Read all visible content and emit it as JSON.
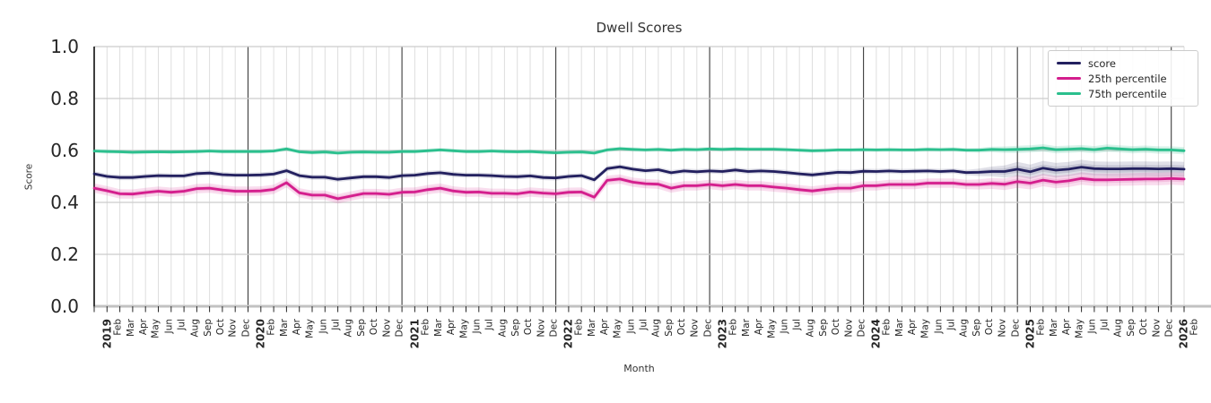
{
  "chart_data": {
    "type": "line",
    "title": "Dwell Scores",
    "xlabel": "Month",
    "ylabel": "Score",
    "ylim": [
      0.0,
      1.0
    ],
    "ytick_labels": [
      "0.0",
      "0.2",
      "0.4",
      "0.6",
      "0.8",
      "1.0"
    ],
    "grid": true,
    "legend_position": "upper right",
    "x_tick_labels": [
      "2019",
      "Feb",
      "Mar",
      "Apr",
      "May",
      "Jun",
      "Jul",
      "Aug",
      "Sep",
      "Oct",
      "Nov",
      "Dec",
      "2020",
      "Feb",
      "Mar",
      "Apr",
      "May",
      "Jun",
      "Jul",
      "Aug",
      "Sep",
      "Oct",
      "Nov",
      "Dec",
      "2021",
      "Feb",
      "Mar",
      "Apr",
      "May",
      "Jun",
      "Jul",
      "Aug",
      "Sep",
      "Oct",
      "Nov",
      "Dec",
      "2022",
      "Feb",
      "Mar",
      "Apr",
      "May",
      "Jun",
      "Jul",
      "Aug",
      "Sep",
      "Oct",
      "Nov",
      "Dec",
      "2023",
      "Feb",
      "Mar",
      "Apr",
      "May",
      "Jun",
      "Jul",
      "Aug",
      "Sep",
      "Oct",
      "Nov",
      "Dec",
      "2024",
      "Feb",
      "Mar",
      "Apr",
      "May",
      "Jun",
      "Jul",
      "Aug",
      "Sep",
      "Oct",
      "Nov",
      "Dec",
      "2025",
      "Feb",
      "Mar",
      "Apr",
      "May",
      "Jun",
      "Jul",
      "Aug",
      "Sep",
      "Oct",
      "Nov",
      "Dec",
      "2026",
      "Feb"
    ],
    "series": [
      {
        "name": "score",
        "color": "#23205f",
        "band_color": "rgba(35,32,95,0.14)",
        "band_half": 0.01,
        "band_half_wide": 0.028,
        "wide_from": 69,
        "values": [
          0.51,
          0.5,
          0.496,
          0.496,
          0.5,
          0.503,
          0.502,
          0.502,
          0.511,
          0.513,
          0.507,
          0.505,
          0.505,
          0.506,
          0.509,
          0.522,
          0.503,
          0.497,
          0.497,
          0.489,
          0.494,
          0.499,
          0.499,
          0.496,
          0.503,
          0.505,
          0.511,
          0.514,
          0.508,
          0.505,
          0.505,
          0.503,
          0.5,
          0.499,
          0.502,
          0.496,
          0.494,
          0.5,
          0.503,
          0.487,
          0.53,
          0.537,
          0.528,
          0.522,
          0.526,
          0.514,
          0.521,
          0.518,
          0.521,
          0.519,
          0.525,
          0.519,
          0.521,
          0.519,
          0.515,
          0.51,
          0.506,
          0.511,
          0.516,
          0.515,
          0.52,
          0.519,
          0.521,
          0.519,
          0.52,
          0.521,
          0.519,
          0.521,
          0.515,
          0.516,
          0.519,
          0.519,
          0.528,
          0.518,
          0.532,
          0.524,
          0.528,
          0.536,
          0.53,
          0.529,
          0.529,
          0.53,
          0.53,
          0.529,
          0.53,
          0.528
        ]
      },
      {
        "name": "25th percentile",
        "color": "#d41e8d",
        "band_color": "rgba(212,30,141,0.15)",
        "band_half": 0.018,
        "band_half_wide": 0.024,
        "wide_from": 69,
        "values": [
          0.455,
          0.445,
          0.433,
          0.432,
          0.438,
          0.443,
          0.439,
          0.443,
          0.453,
          0.455,
          0.448,
          0.443,
          0.443,
          0.444,
          0.45,
          0.476,
          0.437,
          0.428,
          0.428,
          0.414,
          0.424,
          0.434,
          0.434,
          0.431,
          0.439,
          0.44,
          0.449,
          0.455,
          0.444,
          0.439,
          0.44,
          0.435,
          0.435,
          0.433,
          0.44,
          0.436,
          0.433,
          0.439,
          0.44,
          0.42,
          0.485,
          0.49,
          0.478,
          0.472,
          0.47,
          0.455,
          0.464,
          0.464,
          0.469,
          0.464,
          0.469,
          0.464,
          0.464,
          0.459,
          0.455,
          0.449,
          0.444,
          0.45,
          0.455,
          0.455,
          0.464,
          0.464,
          0.469,
          0.469,
          0.469,
          0.474,
          0.474,
          0.474,
          0.469,
          0.469,
          0.473,
          0.47,
          0.48,
          0.474,
          0.486,
          0.478,
          0.483,
          0.492,
          0.487,
          0.487,
          0.488,
          0.489,
          0.49,
          0.49,
          0.492,
          0.49
        ]
      },
      {
        "name": "75th percentile",
        "color": "#2abf8d",
        "band_color": "rgba(42,191,141,0.18)",
        "band_half": 0.008,
        "band_half_wide": 0.014,
        "wide_from": 69,
        "values": [
          0.598,
          0.596,
          0.595,
          0.593,
          0.594,
          0.595,
          0.594,
          0.595,
          0.596,
          0.598,
          0.596,
          0.596,
          0.596,
          0.596,
          0.598,
          0.606,
          0.595,
          0.592,
          0.594,
          0.59,
          0.593,
          0.594,
          0.593,
          0.593,
          0.596,
          0.596,
          0.599,
          0.602,
          0.599,
          0.596,
          0.596,
          0.598,
          0.596,
          0.595,
          0.596,
          0.593,
          0.591,
          0.593,
          0.594,
          0.59,
          0.602,
          0.607,
          0.604,
          0.602,
          0.604,
          0.601,
          0.604,
          0.603,
          0.606,
          0.604,
          0.606,
          0.605,
          0.605,
          0.605,
          0.603,
          0.601,
          0.599,
          0.6,
          0.602,
          0.602,
          0.603,
          0.602,
          0.603,
          0.602,
          0.602,
          0.604,
          0.603,
          0.604,
          0.601,
          0.601,
          0.604,
          0.603,
          0.604,
          0.606,
          0.61,
          0.603,
          0.605,
          0.607,
          0.603,
          0.609,
          0.606,
          0.603,
          0.605,
          0.602,
          0.602,
          0.599
        ]
      }
    ]
  },
  "style_colors": {
    "minor_grid": "#dedede",
    "major_hgrid": "#cccccc",
    "baseline": "#c2c2c2",
    "year_line": "#3c3c3c",
    "spine": "#2b2b2b",
    "tick_mark": "#262626"
  }
}
